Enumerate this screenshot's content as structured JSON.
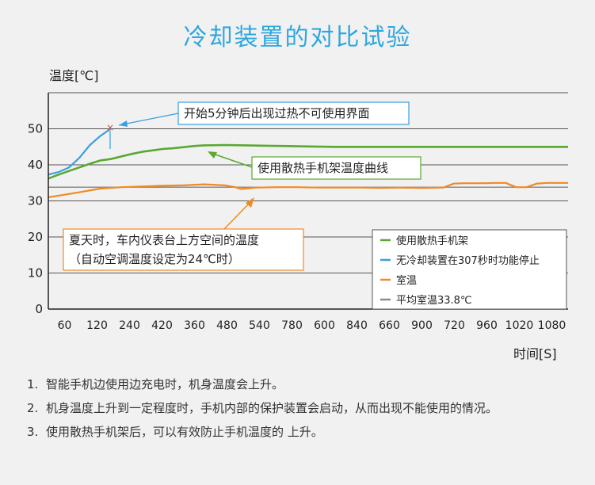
{
  "chart_data": {
    "type": "line",
    "title": "冷却装置的对比试验",
    "ylabel": "温度[℃]",
    "xlabel": "时间[S]",
    "ylim": [
      0,
      60
    ],
    "yticks": [
      0,
      10,
      20,
      30,
      40,
      50
    ],
    "x_tick_labels": [
      "60",
      "120",
      "240",
      "420",
      "360",
      "480",
      "540",
      "780",
      "600",
      "840",
      "660",
      "900",
      "720",
      "960",
      "1020",
      "1080"
    ],
    "grid": true,
    "legend_position": "bottom-right",
    "series": [
      {
        "name": "使用散热手机架",
        "color": "#5aa832",
        "x": [
          0,
          0.02,
          0.04,
          0.06,
          0.08,
          0.1,
          0.12,
          0.14,
          0.16,
          0.18,
          0.2,
          0.22,
          0.24,
          0.26,
          0.28,
          0.3,
          0.34,
          0.38,
          0.42,
          0.46,
          0.5,
          0.55,
          0.6,
          0.7,
          0.8,
          0.9,
          1.0
        ],
        "y": [
          36.2,
          37.3,
          38.3,
          39.3,
          40.3,
          41.2,
          41.6,
          42.3,
          43.0,
          43.6,
          44.0,
          44.4,
          44.6,
          44.9,
          45.2,
          45.4,
          45.5,
          45.4,
          45.3,
          45.2,
          45.1,
          45.0,
          45.0,
          45.0,
          45.0,
          45.0,
          45.0
        ]
      },
      {
        "name": "无冷却装置在307秒时功能停止",
        "color": "#3a9fe0",
        "x": [
          0,
          0.02,
          0.04,
          0.06,
          0.08,
          0.1,
          0.12
        ],
        "y": [
          37.3,
          38.0,
          39.3,
          42.0,
          45.5,
          48.0,
          50.0
        ]
      },
      {
        "name": "室温",
        "color": "#f08a24",
        "x": [
          0,
          0.03,
          0.06,
          0.1,
          0.14,
          0.18,
          0.22,
          0.26,
          0.3,
          0.34,
          0.36,
          0.37,
          0.38,
          0.4,
          0.44,
          0.48,
          0.52,
          0.56,
          0.6,
          0.64,
          0.68,
          0.72,
          0.76,
          0.78,
          0.8,
          0.84,
          0.86,
          0.88,
          0.9,
          0.92,
          0.94,
          0.96,
          1.0
        ],
        "y": [
          31.0,
          31.7,
          32.4,
          33.4,
          33.8,
          34.0,
          34.2,
          34.3,
          34.6,
          34.3,
          33.8,
          33.3,
          33.4,
          33.7,
          33.8,
          33.8,
          33.7,
          33.7,
          33.7,
          33.6,
          33.7,
          33.6,
          33.7,
          34.8,
          34.9,
          34.9,
          35.0,
          35.0,
          33.8,
          33.8,
          34.8,
          35.0,
          35.0
        ]
      },
      {
        "name": "平均室温33.8℃",
        "color": "#8c8c8c",
        "x": [
          0,
          1.0
        ],
        "y": [
          33.8,
          33.8
        ]
      }
    ],
    "annotations": [
      {
        "text": "开始5分钟后出现过热不可使用界面"
      },
      {
        "text": "使用散热手机架温度曲线"
      },
      {
        "lines": [
          "夏天时，车内仪表台上方空间的温度",
          "（自动空调温度设定为24℃时）"
        ]
      }
    ]
  },
  "notes": [
    {
      "num": "1.",
      "text": "智能手机边使用边充电时，机身温度会上升。"
    },
    {
      "num": "2.",
      "text": "机身温度上升到一定程度时，手机内部的保护装置会启动，从而出现不能使用的情况。"
    },
    {
      "num": "3.",
      "text": "使用散热手机架后，可以有效防止手机温度的 上升。"
    }
  ],
  "colors": {
    "title": "#2ea7e0",
    "green": "#5aa832",
    "blue": "#3a9fe0",
    "orange": "#f08a24",
    "avg_gray": "#8c8c8c",
    "axis": "#222222",
    "grid": "#555555"
  }
}
